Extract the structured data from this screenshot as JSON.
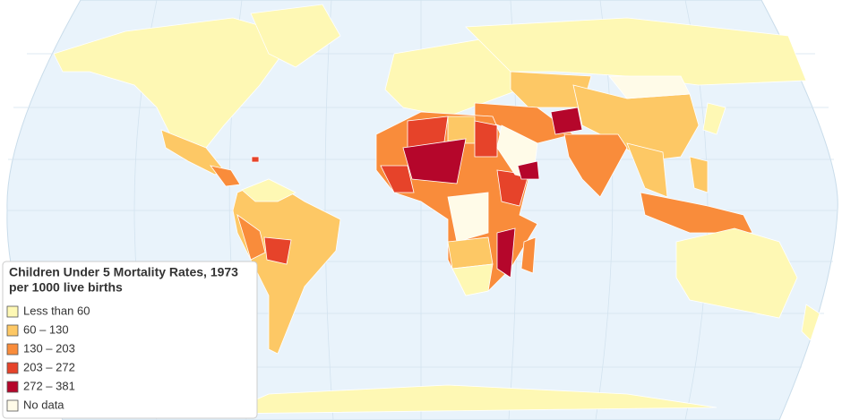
{
  "legend": {
    "title": "Children Under 5 Mortality Rates, 1973",
    "subtitle": "per 1000 live births",
    "items": [
      {
        "label": "Less than 60",
        "color": "#fef8b4"
      },
      {
        "label": "60 – 130",
        "color": "#fdc865"
      },
      {
        "label": "130 – 203",
        "color": "#f98c3b"
      },
      {
        "label": "203 – 272",
        "color": "#e6432a"
      },
      {
        "label": "272 – 381",
        "color": "#b5062b"
      },
      {
        "label": "No data",
        "color": "#fffbe8"
      }
    ]
  }
}
